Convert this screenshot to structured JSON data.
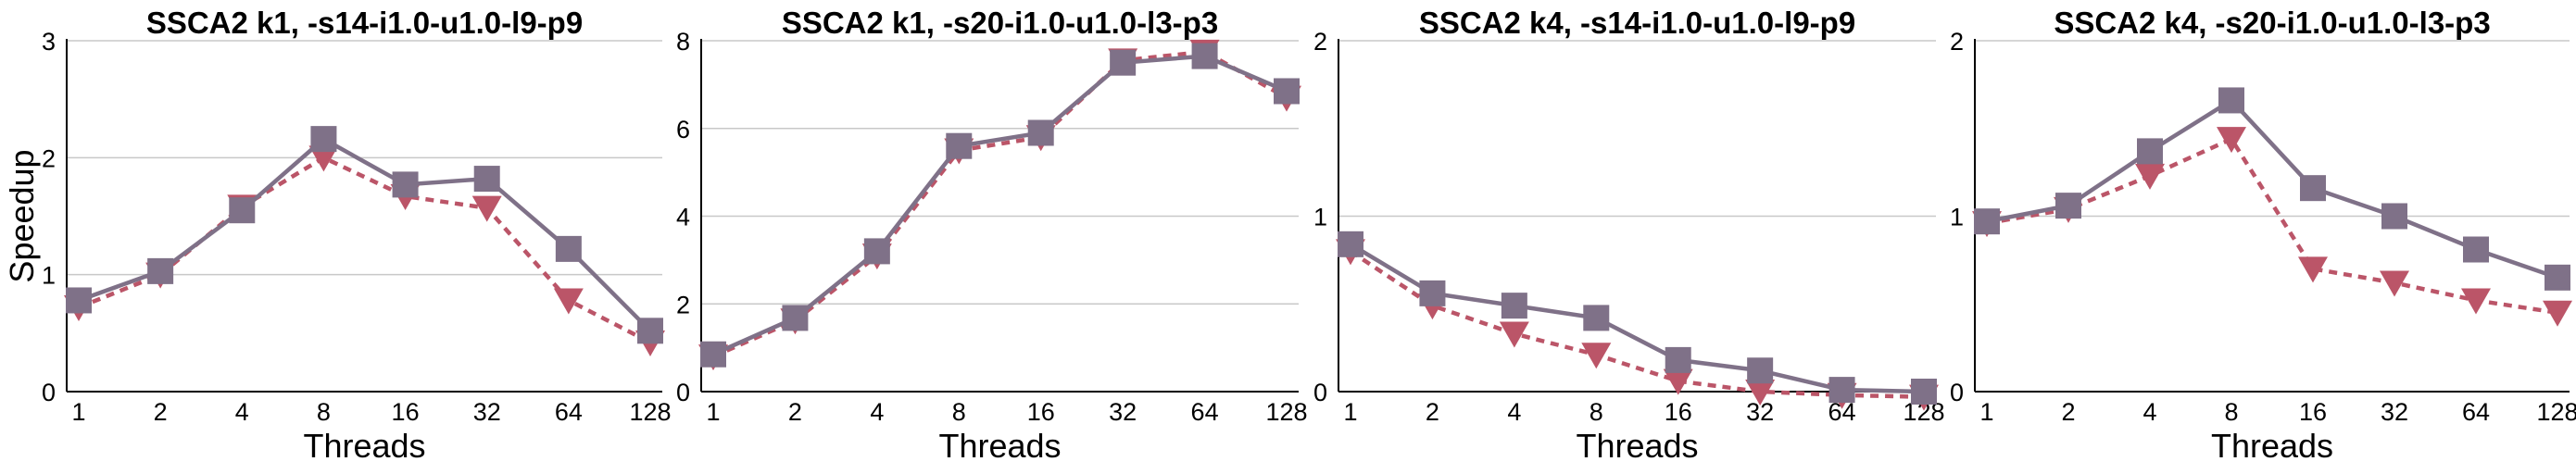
{
  "colors": {
    "solid": "#7f7188",
    "dashed": "#bb5568",
    "grid": "#c8c8c8",
    "axis": "#000000"
  },
  "chart_data": [
    {
      "type": "line",
      "title": "SSCA2 k1, -s14-i1.0-u1.0-l9-p9",
      "xlabel": "Threads",
      "ylabel": "Speedup",
      "categories": [
        "1",
        "2",
        "4",
        "8",
        "16",
        "32",
        "64",
        "128"
      ],
      "ylim": [
        0,
        3
      ],
      "yticks": [
        "0",
        "1",
        "2",
        "3"
      ],
      "grid": true,
      "series": [
        {
          "style": "solid",
          "marker": "square",
          "values": [
            0.78,
            1.03,
            1.55,
            2.16,
            1.77,
            1.82,
            1.22,
            0.52
          ]
        },
        {
          "style": "dashed",
          "marker": "triangle-down",
          "values": [
            0.72,
            1.0,
            1.58,
            2.0,
            1.67,
            1.57,
            0.78,
            0.42
          ]
        }
      ]
    },
    {
      "type": "line",
      "title": "SSCA2 k1, -s20-i1.0-u1.0-l3-p3",
      "xlabel": "Threads",
      "ylabel": "",
      "categories": [
        "1",
        "2",
        "4",
        "8",
        "16",
        "32",
        "64",
        "128"
      ],
      "ylim": [
        0,
        8
      ],
      "yticks": [
        "0",
        "2",
        "4",
        "6",
        "8"
      ],
      "grid": true,
      "series": [
        {
          "style": "solid",
          "marker": "square",
          "values": [
            0.85,
            1.68,
            3.2,
            5.6,
            5.9,
            7.5,
            7.65,
            6.85
          ]
        },
        {
          "style": "dashed",
          "marker": "triangle-down",
          "values": [
            0.8,
            1.62,
            3.1,
            5.5,
            5.8,
            7.55,
            7.75,
            6.7
          ]
        }
      ]
    },
    {
      "type": "line",
      "title": "SSCA2 k4, -s14-i1.0-u1.0-l9-p9",
      "xlabel": "Threads",
      "ylabel": "",
      "categories": [
        "1",
        "2",
        "4",
        "8",
        "16",
        "32",
        "64",
        "128"
      ],
      "ylim": [
        0,
        2
      ],
      "yticks": [
        "0",
        "1",
        "2"
      ],
      "grid": true,
      "series": [
        {
          "style": "solid",
          "marker": "square",
          "values": [
            0.84,
            0.56,
            0.49,
            0.42,
            0.18,
            0.12,
            0.01,
            0.0
          ]
        },
        {
          "style": "dashed",
          "marker": "triangle-down",
          "values": [
            0.8,
            0.49,
            0.33,
            0.21,
            0.06,
            0.0,
            -0.02,
            -0.03
          ]
        }
      ]
    },
    {
      "type": "line",
      "title": "SSCA2 k4, -s20-i1.0-u1.0-l3-p3",
      "xlabel": "Threads",
      "ylabel": "",
      "categories": [
        "1",
        "2",
        "4",
        "8",
        "16",
        "32",
        "64",
        "128"
      ],
      "ylim": [
        0,
        2
      ],
      "yticks": [
        "0",
        "1",
        "2"
      ],
      "grid": true,
      "series": [
        {
          "style": "solid",
          "marker": "square",
          "values": [
            0.97,
            1.06,
            1.37,
            1.66,
            1.16,
            1.0,
            0.81,
            0.65
          ]
        },
        {
          "style": "dashed",
          "marker": "triangle-down",
          "values": [
            0.96,
            1.04,
            1.23,
            1.44,
            0.7,
            0.62,
            0.52,
            0.45
          ]
        }
      ]
    }
  ]
}
